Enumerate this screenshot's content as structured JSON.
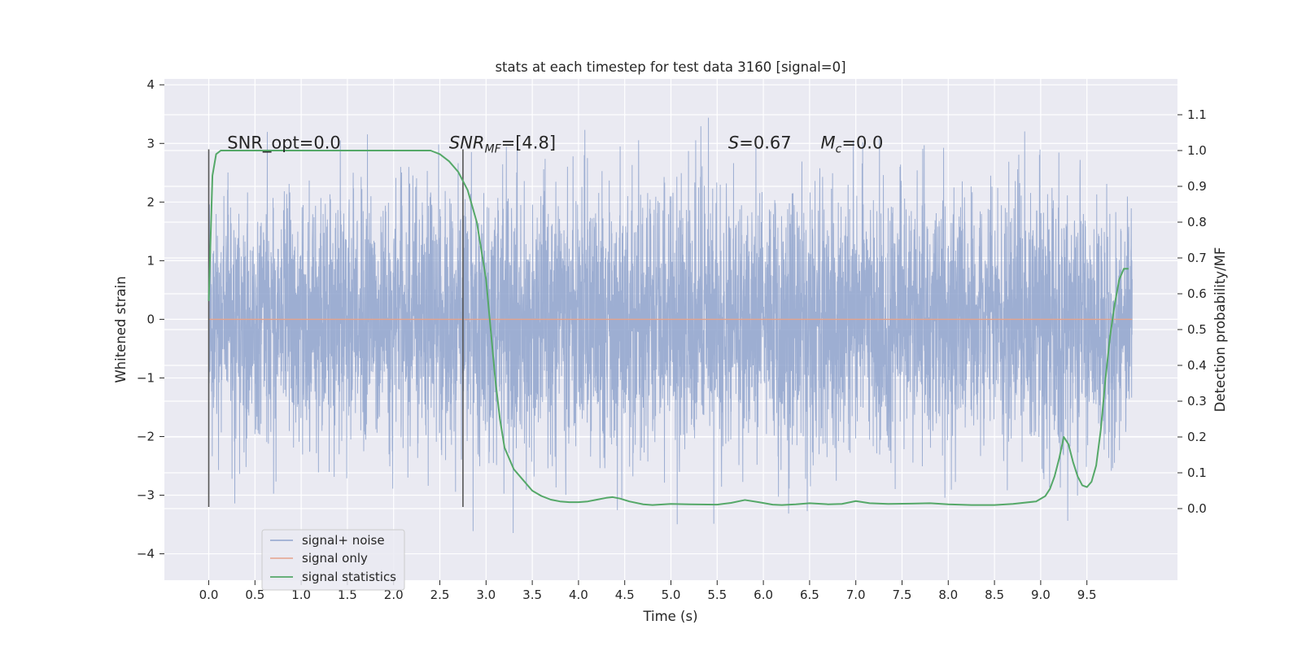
{
  "chart_data": {
    "type": "line",
    "title": "stats at each timestep for test data 3160 [signal=0]",
    "xlabel": "Time (s)",
    "ylabel_left": "Whitened strain",
    "ylabel_right": "Detection probability/MF",
    "xlim": [
      -0.48,
      10.48
    ],
    "ylim_left": [
      -4.45,
      4.1
    ],
    "ylim_right": [
      -0.2,
      1.2
    ],
    "x_ticks": [
      "0.0",
      "0.5",
      "1.0",
      "1.5",
      "2.0",
      "2.5",
      "3.0",
      "3.5",
      "4.0",
      "4.5",
      "5.0",
      "5.5",
      "6.0",
      "6.5",
      "7.0",
      "7.5",
      "8.0",
      "8.5",
      "9.0",
      "9.5"
    ],
    "y_ticks_left": [
      "−4",
      "−3",
      "−2",
      "−1",
      "0",
      "1",
      "2",
      "3",
      "4"
    ],
    "y_ticks_right": [
      "0.0",
      "0.1",
      "0.2",
      "0.3",
      "0.4",
      "0.5",
      "0.6",
      "0.7",
      "0.8",
      "0.9",
      "1.0",
      "1.1"
    ],
    "grid": true,
    "legend_position": "lower-left",
    "series": [
      {
        "name": "signal+ noise",
        "color": "#8fa3cc",
        "axis": "left",
        "x_range": [
          0.0,
          9.99
        ],
        "typical_range": [
          -1.5,
          1.1
        ],
        "peak_range": [
          -4.05,
          3.75
        ]
      },
      {
        "name": "signal only",
        "color": "#e5a28b",
        "axis": "left",
        "x": [
          0.0,
          9.99
        ],
        "y": [
          0.0,
          0.0
        ]
      },
      {
        "name": "signal statistics",
        "color": "#55a868",
        "axis": "right",
        "x": [
          0.0,
          0.04,
          0.08,
          0.13,
          0.2,
          0.3,
          0.5,
          1.0,
          1.5,
          2.0,
          2.2,
          2.4,
          2.5,
          2.6,
          2.7,
          2.8,
          2.9,
          3.0,
          3.05,
          3.1,
          3.15,
          3.2,
          3.3,
          3.4,
          3.5,
          3.6,
          3.7,
          3.8,
          3.9,
          4.0,
          4.1,
          4.2,
          4.3,
          4.37,
          4.45,
          4.55,
          4.7,
          4.8,
          5.0,
          5.2,
          5.5,
          5.65,
          5.8,
          5.95,
          6.1,
          6.2,
          6.35,
          6.5,
          6.7,
          6.85,
          7.0,
          7.15,
          7.35,
          7.6,
          7.8,
          8.0,
          8.25,
          8.5,
          8.7,
          8.95,
          9.05,
          9.1,
          9.15,
          9.2,
          9.25,
          9.3,
          9.35,
          9.4,
          9.45,
          9.5,
          9.55,
          9.6,
          9.65,
          9.7,
          9.75,
          9.8,
          9.85,
          9.9,
          9.95
        ],
        "y": [
          0.58,
          0.93,
          0.99,
          1.0,
          1.0,
          1.0,
          1.0,
          1.0,
          1.0,
          1.0,
          1.0,
          1.0,
          0.99,
          0.97,
          0.94,
          0.89,
          0.8,
          0.64,
          0.5,
          0.36,
          0.25,
          0.17,
          0.11,
          0.08,
          0.05,
          0.035,
          0.025,
          0.02,
          0.018,
          0.018,
          0.02,
          0.025,
          0.03,
          0.032,
          0.028,
          0.02,
          0.012,
          0.01,
          0.013,
          0.012,
          0.011,
          0.016,
          0.024,
          0.018,
          0.011,
          0.01,
          0.012,
          0.015,
          0.012,
          0.013,
          0.021,
          0.015,
          0.013,
          0.014,
          0.015,
          0.012,
          0.01,
          0.01,
          0.013,
          0.02,
          0.035,
          0.055,
          0.09,
          0.14,
          0.2,
          0.18,
          0.13,
          0.09,
          0.065,
          0.06,
          0.075,
          0.12,
          0.22,
          0.36,
          0.48,
          0.57,
          0.64,
          0.67,
          0.67
        ]
      }
    ],
    "vlines": [
      {
        "x": 0.0,
        "ymin": -3.2,
        "ymax": 2.9,
        "color": "#555555"
      },
      {
        "x": 2.75,
        "ymin": -3.2,
        "ymax": 2.9,
        "color": "#555555"
      }
    ],
    "annotations": [
      {
        "id": "snr-opt",
        "text": "SNR_opt=0.0",
        "x": 0.2,
        "y": 3.0
      },
      {
        "id": "snr-mf",
        "text": "SNR",
        "sub": "MF",
        "after": "=[4.8]",
        "x": 2.6,
        "y": 3.0
      },
      {
        "id": "s-stat",
        "text": "S",
        "after": "=0.67",
        "x": 5.62,
        "y": 3.0
      },
      {
        "id": "mc-stat",
        "text": "M",
        "sub": "c",
        "after": "=0.0",
        "x": 6.62,
        "y": 3.0
      }
    ],
    "background_color": "#eaeaf2"
  }
}
